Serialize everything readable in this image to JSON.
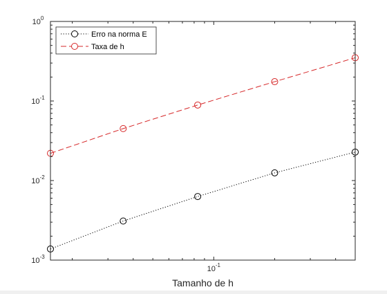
{
  "chart_data": {
    "type": "line",
    "xlabel": "Tamanho de h",
    "ylabel": "",
    "title": "",
    "xscale": "log",
    "yscale": "log",
    "xlim": [
      0.0156,
      0.5
    ],
    "ylim": [
      0.001,
      1
    ],
    "grid": false,
    "legend_position": "top-left",
    "x_ticks": [
      {
        "value": 0.1,
        "base": "10",
        "exp": "-1"
      }
    ],
    "y_ticks": [
      {
        "value": 0.001,
        "base": "10",
        "exp": "-3"
      },
      {
        "value": 0.01,
        "base": "10",
        "exp": "-2"
      },
      {
        "value": 0.1,
        "base": "10",
        "exp": "-1"
      },
      {
        "value": 1,
        "base": "10",
        "exp": "0"
      }
    ],
    "x": [
      0.0156,
      0.0357,
      0.0833,
      0.2,
      0.5
    ],
    "series": [
      {
        "name": "Erro na norma E",
        "color": "#000000",
        "line_style": "dotted",
        "marker": "circle",
        "values": [
          0.00138,
          0.0031,
          0.0063,
          0.0125,
          0.0228
        ]
      },
      {
        "name": "Taxa de h",
        "color": "#d62728",
        "line_style": "dashed",
        "marker": "circle",
        "values": [
          0.022,
          0.045,
          0.089,
          0.175,
          0.35
        ]
      }
    ]
  }
}
